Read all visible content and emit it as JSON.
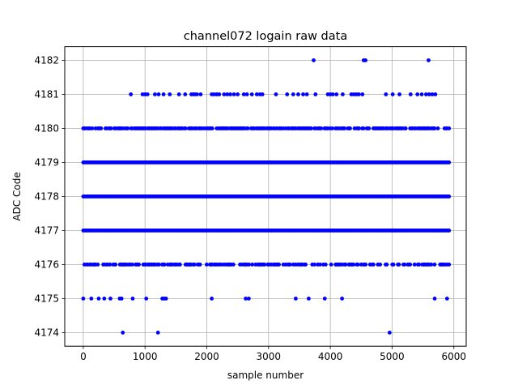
{
  "chart_data": {
    "type": "scatter",
    "title": "channel072 logain raw data",
    "xlabel": "sample number",
    "ylabel": "ADC Code",
    "xlim": [
      -300,
      6200
    ],
    "ylim": [
      4173.6,
      4182.4
    ],
    "xticks": [
      0,
      1000,
      2000,
      3000,
      4000,
      5000,
      6000
    ],
    "yticks": [
      4174,
      4175,
      4176,
      4177,
      4178,
      4179,
      4180,
      4181,
      4182
    ],
    "grid": true,
    "marker_color": "#0000ff",
    "n_samples": 5930,
    "series": [
      {
        "dense_levels": [
          {
            "y": 4180,
            "x_range": [
              0,
              5930
            ],
            "density": 0.72
          },
          {
            "y": 4179,
            "x_range": [
              0,
              5930
            ],
            "density": 1.0
          },
          {
            "y": 4178,
            "x_range": [
              0,
              5930
            ],
            "density": 1.0
          },
          {
            "y": 4177,
            "x_range": [
              0,
              5930
            ],
            "density": 1.0
          },
          {
            "y": 4176,
            "x_range": [
              0,
              5930
            ],
            "density": 0.55
          }
        ],
        "points": [
          {
            "x": 3730,
            "y": 4182
          },
          {
            "x": 4540,
            "y": 4182
          },
          {
            "x": 4570,
            "y": 4182
          },
          {
            "x": 5590,
            "y": 4182
          },
          {
            "x": 770,
            "y": 4181
          },
          {
            "x": 960,
            "y": 4181
          },
          {
            "x": 1000,
            "y": 4181
          },
          {
            "x": 1040,
            "y": 4181
          },
          {
            "x": 1160,
            "y": 4181
          },
          {
            "x": 1220,
            "y": 4181
          },
          {
            "x": 1300,
            "y": 4181
          },
          {
            "x": 1400,
            "y": 4181
          },
          {
            "x": 1550,
            "y": 4181
          },
          {
            "x": 1650,
            "y": 4181
          },
          {
            "x": 1750,
            "y": 4181
          },
          {
            "x": 1780,
            "y": 4181
          },
          {
            "x": 1810,
            "y": 4181
          },
          {
            "x": 1840,
            "y": 4181
          },
          {
            "x": 1900,
            "y": 4181
          },
          {
            "x": 2080,
            "y": 4181
          },
          {
            "x": 2120,
            "y": 4181
          },
          {
            "x": 2160,
            "y": 4181
          },
          {
            "x": 2200,
            "y": 4181
          },
          {
            "x": 2280,
            "y": 4181
          },
          {
            "x": 2330,
            "y": 4181
          },
          {
            "x": 2380,
            "y": 4181
          },
          {
            "x": 2440,
            "y": 4181
          },
          {
            "x": 2500,
            "y": 4181
          },
          {
            "x": 2600,
            "y": 4181
          },
          {
            "x": 2650,
            "y": 4181
          },
          {
            "x": 2730,
            "y": 4181
          },
          {
            "x": 2810,
            "y": 4181
          },
          {
            "x": 2860,
            "y": 4181
          },
          {
            "x": 2900,
            "y": 4181
          },
          {
            "x": 3120,
            "y": 4181
          },
          {
            "x": 3300,
            "y": 4181
          },
          {
            "x": 3400,
            "y": 4181
          },
          {
            "x": 3480,
            "y": 4181
          },
          {
            "x": 3560,
            "y": 4181
          },
          {
            "x": 3620,
            "y": 4181
          },
          {
            "x": 3760,
            "y": 4181
          },
          {
            "x": 3960,
            "y": 4181
          },
          {
            "x": 4000,
            "y": 4181
          },
          {
            "x": 4040,
            "y": 4181
          },
          {
            "x": 4100,
            "y": 4181
          },
          {
            "x": 4200,
            "y": 4181
          },
          {
            "x": 4340,
            "y": 4181
          },
          {
            "x": 4380,
            "y": 4181
          },
          {
            "x": 4420,
            "y": 4181
          },
          {
            "x": 4460,
            "y": 4181
          },
          {
            "x": 4520,
            "y": 4181
          },
          {
            "x": 4900,
            "y": 4181
          },
          {
            "x": 5010,
            "y": 4181
          },
          {
            "x": 5120,
            "y": 4181
          },
          {
            "x": 5300,
            "y": 4181
          },
          {
            "x": 5410,
            "y": 4181
          },
          {
            "x": 5480,
            "y": 4181
          },
          {
            "x": 5550,
            "y": 4181
          },
          {
            "x": 5600,
            "y": 4181
          },
          {
            "x": 5650,
            "y": 4181
          },
          {
            "x": 5700,
            "y": 4181
          },
          {
            "x": 0,
            "y": 4175
          },
          {
            "x": 130,
            "y": 4175
          },
          {
            "x": 250,
            "y": 4175
          },
          {
            "x": 340,
            "y": 4175
          },
          {
            "x": 440,
            "y": 4175
          },
          {
            "x": 590,
            "y": 4175
          },
          {
            "x": 620,
            "y": 4175
          },
          {
            "x": 800,
            "y": 4175
          },
          {
            "x": 1020,
            "y": 4175
          },
          {
            "x": 1280,
            "y": 4175
          },
          {
            "x": 1310,
            "y": 4175
          },
          {
            "x": 1340,
            "y": 4175
          },
          {
            "x": 2080,
            "y": 4175
          },
          {
            "x": 2630,
            "y": 4175
          },
          {
            "x": 2680,
            "y": 4175
          },
          {
            "x": 3440,
            "y": 4175
          },
          {
            "x": 3650,
            "y": 4175
          },
          {
            "x": 3910,
            "y": 4175
          },
          {
            "x": 4190,
            "y": 4175
          },
          {
            "x": 5690,
            "y": 4175
          },
          {
            "x": 5890,
            "y": 4175
          },
          {
            "x": 640,
            "y": 4174
          },
          {
            "x": 1210,
            "y": 4174
          },
          {
            "x": 4960,
            "y": 4174
          }
        ]
      }
    ]
  }
}
